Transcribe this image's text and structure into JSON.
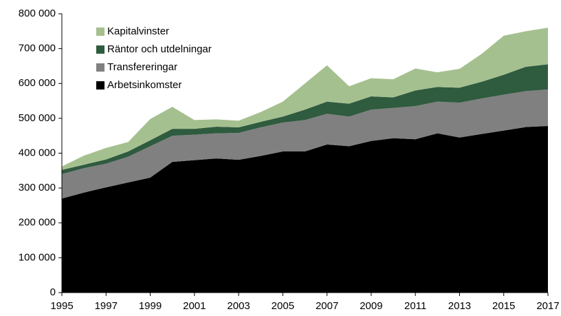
{
  "chart_data": {
    "type": "stacked_area",
    "x": [
      1995,
      1996,
      1997,
      1998,
      1999,
      2000,
      2001,
      2002,
      2003,
      2004,
      2005,
      2006,
      2007,
      2008,
      2009,
      2010,
      2011,
      2012,
      2013,
      2014,
      2015,
      2016,
      2017
    ],
    "series": [
      {
        "name": "Arbetsinkomster",
        "color": "#000000",
        "values": [
          270000,
          287000,
          302000,
          316000,
          330000,
          375000,
          380000,
          385000,
          381000,
          392000,
          405000,
          405000,
          425000,
          420000,
          435000,
          443000,
          440000,
          457000,
          445000,
          455000,
          465000,
          475000,
          478000
        ]
      },
      {
        "name": "Transfereringar",
        "color": "#808080",
        "values": [
          70000,
          70000,
          68000,
          74000,
          90000,
          75000,
          73000,
          72000,
          77000,
          82000,
          83000,
          90000,
          88000,
          85000,
          90000,
          87000,
          95000,
          91000,
          100000,
          102000,
          103000,
          103000,
          105000
        ]
      },
      {
        "name": "Räntor och utdelningar",
        "color": "#2f5b3f",
        "values": [
          12000,
          10000,
          12000,
          15000,
          17000,
          20000,
          17000,
          19000,
          16000,
          16000,
          17000,
          30000,
          35000,
          37000,
          38000,
          30000,
          45000,
          42000,
          43000,
          48000,
          57000,
          70000,
          72000
        ]
      },
      {
        "name": "Kapitalvinster",
        "color": "#a5c08f",
        "values": [
          10000,
          26000,
          33000,
          27000,
          61000,
          63000,
          25000,
          21000,
          19000,
          28000,
          43000,
          75000,
          104000,
          50000,
          52000,
          52000,
          63000,
          42000,
          54000,
          80000,
          112000,
          102000,
          105000
        ]
      }
    ],
    "xlim": [
      1995,
      2017
    ],
    "xticks": [
      1995,
      1997,
      1999,
      2001,
      2003,
      2005,
      2007,
      2009,
      2011,
      2013,
      2015,
      2017
    ],
    "ylim": [
      0,
      800000
    ],
    "yticks": [
      0,
      {
        "value": 100000,
        "label": "100 000"
      },
      {
        "value": 200000,
        "label": "200 000"
      },
      {
        "value": 300000,
        "label": "300 000"
      },
      {
        "value": 400000,
        "label": "400 000"
      },
      {
        "value": 500000,
        "label": "500 000"
      },
      {
        "value": 600000,
        "label": "600 000"
      },
      {
        "value": 700000,
        "label": "700 000"
      },
      {
        "value": 800000,
        "label": "800 000"
      }
    ],
    "legend": "upper left"
  }
}
